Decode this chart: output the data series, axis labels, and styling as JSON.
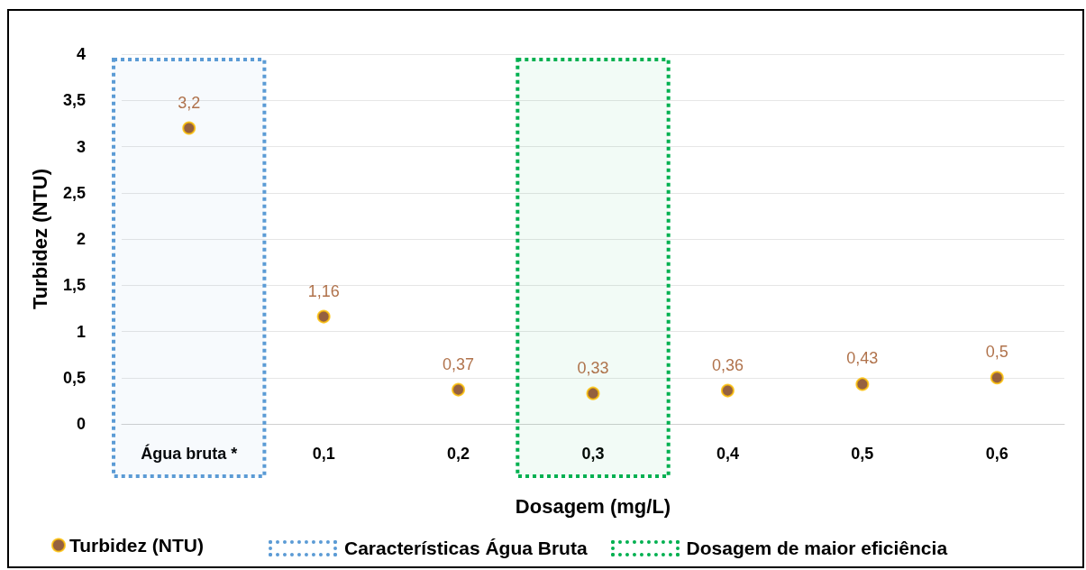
{
  "chart_data": {
    "type": "scatter",
    "xlabel": "Dosagem (mg/L)",
    "ylabel": "Turbidez (NTU)",
    "categories": [
      "Água bruta *",
      "0,1",
      "0,2",
      "0,3",
      "0,4",
      "0,5",
      "0,6"
    ],
    "series": [
      {
        "name": "Turbidez (NTU)",
        "color": "#7b3a10",
        "values": [
          3.2,
          1.16,
          0.37,
          0.33,
          0.36,
          0.43,
          0.5
        ],
        "value_labels": [
          "3,2",
          "1,16",
          "0,37",
          "0,33",
          "0,36",
          "0,43",
          "0,5"
        ]
      }
    ],
    "ylim": [
      0,
      4
    ],
    "yticks": [
      0,
      {
        "value": 0.5,
        "label": "0,5"
      },
      1,
      {
        "value": 1.5,
        "label": "1,5"
      },
      2,
      {
        "value": 2.5,
        "label": "2,5"
      },
      3,
      {
        "value": 3.5,
        "label": "3,5"
      },
      4
    ],
    "bands": [
      {
        "axis": "x",
        "from": "Água bruta *",
        "to": "Água bruta *",
        "label": "Características Água Bruta",
        "color": "#5b9bd5"
      },
      {
        "axis": "x",
        "from": "0,3",
        "to": "0,3",
        "label": "Dosagem de maior eficiência",
        "color": "#00b050"
      }
    ],
    "grid": "y",
    "legend": "bottom",
    "marker": "circle"
  }
}
